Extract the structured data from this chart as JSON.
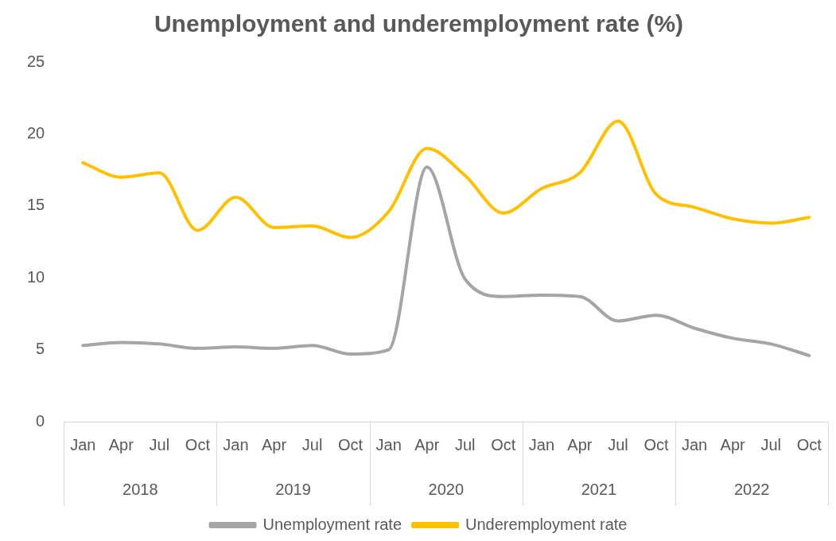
{
  "chart_data": {
    "type": "line",
    "title": "Unemployment and underemployment rate (%)",
    "categories": [
      "Jan",
      "Apr",
      "Jul",
      "Oct",
      "Jan",
      "Apr",
      "Jul",
      "Oct",
      "Jan",
      "Apr",
      "Jul",
      "Oct",
      "Jan",
      "Apr",
      "Jul",
      "Oct",
      "Jan",
      "Apr",
      "Jul",
      "Oct"
    ],
    "series": [
      {
        "name": "Unemployment rate",
        "color": "#a5a5a5",
        "values": [
          5.3,
          5.5,
          5.4,
          5.1,
          5.2,
          5.1,
          5.3,
          4.7,
          5.0,
          17.7,
          9.9,
          8.7,
          8.8,
          8.7,
          7.0,
          7.4,
          6.5,
          5.8,
          5.4,
          4.6
        ]
      },
      {
        "name": "Underemployment rate",
        "color": "#ffc000",
        "values": [
          18.0,
          17.0,
          17.3,
          13.3,
          15.6,
          13.5,
          13.6,
          12.8,
          14.6,
          19.0,
          17.1,
          14.5,
          16.2,
          17.3,
          20.9,
          15.8,
          14.9,
          14.1,
          13.8,
          14.2
        ]
      }
    ],
    "annotations": [
      "2018",
      "2019",
      "2020",
      "2021",
      "2022"
    ],
    "ylim": [
      0,
      25
    ],
    "yticks": [
      0,
      5,
      10,
      15,
      20,
      25
    ],
    "grid": false,
    "legend": "bottom",
    "marker": "none",
    "line_style": "solid"
  }
}
